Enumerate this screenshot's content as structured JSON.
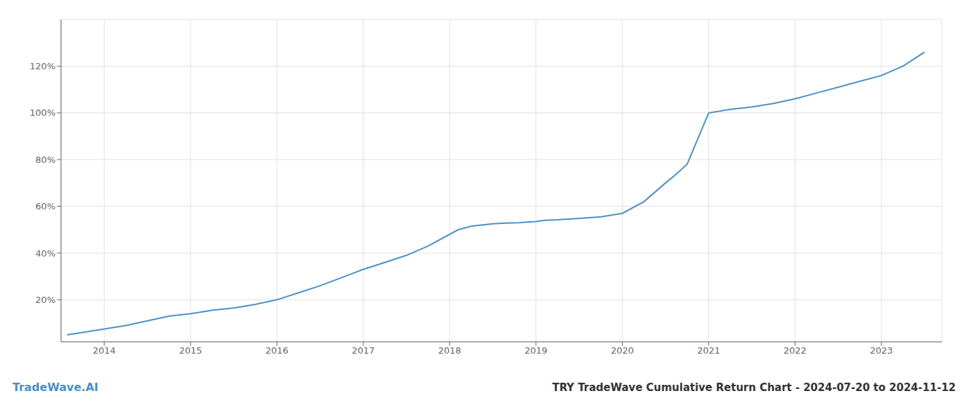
{
  "chart_data": {
    "type": "line",
    "title": "TRY TradeWave Cumulative Return Chart - 2024-07-20 to 2024-11-12",
    "annotations": [
      "TradeWave.AI"
    ],
    "color": "#4a90c4",
    "x": [
      2013.57,
      2013.75,
      2014.0,
      2014.25,
      2014.5,
      2014.75,
      2015.0,
      2015.25,
      2015.5,
      2015.75,
      2016.0,
      2016.25,
      2016.5,
      2016.75,
      2017.0,
      2017.25,
      2017.5,
      2017.75,
      2018.0,
      2018.1,
      2018.25,
      2018.5,
      2018.65,
      2018.8,
      2019.0,
      2019.1,
      2019.25,
      2019.5,
      2019.75,
      2020.0,
      2020.25,
      2020.5,
      2020.6,
      2020.75,
      2021.0,
      2021.25,
      2021.5,
      2021.75,
      2022.0,
      2022.25,
      2022.5,
      2022.75,
      2023.0,
      2023.25,
      2023.5
    ],
    "values": [
      5.0,
      6.0,
      7.5,
      9.0,
      11.0,
      13.0,
      14.0,
      15.5,
      16.5,
      18.0,
      20.0,
      23.0,
      26.0,
      29.5,
      33.0,
      36.0,
      39.0,
      43.0,
      48.0,
      50.0,
      51.5,
      52.5,
      52.8,
      53.0,
      53.5,
      54.0,
      54.2,
      54.8,
      55.5,
      57.0,
      62.0,
      70.0,
      73.0,
      78.0,
      100.0,
      101.5,
      102.5,
      104.0,
      106.0,
      108.5,
      111.0,
      113.5,
      116.0,
      120.0,
      126.0
    ],
    "xlim": [
      2013.5,
      2023.7
    ],
    "xticks": [
      2014,
      2015,
      2016,
      2017,
      2018,
      2019,
      2020,
      2021,
      2022,
      2023
    ],
    "ylim": [
      2,
      140
    ],
    "yticks": [
      {
        "value": 20,
        "label": "20%"
      },
      {
        "value": 40,
        "label": "40%"
      },
      {
        "value": 60,
        "label": "60%"
      },
      {
        "value": 80,
        "label": "80%"
      },
      {
        "value": 100,
        "label": "100%"
      },
      {
        "value": 120,
        "label": "120%"
      }
    ],
    "grid": true
  }
}
